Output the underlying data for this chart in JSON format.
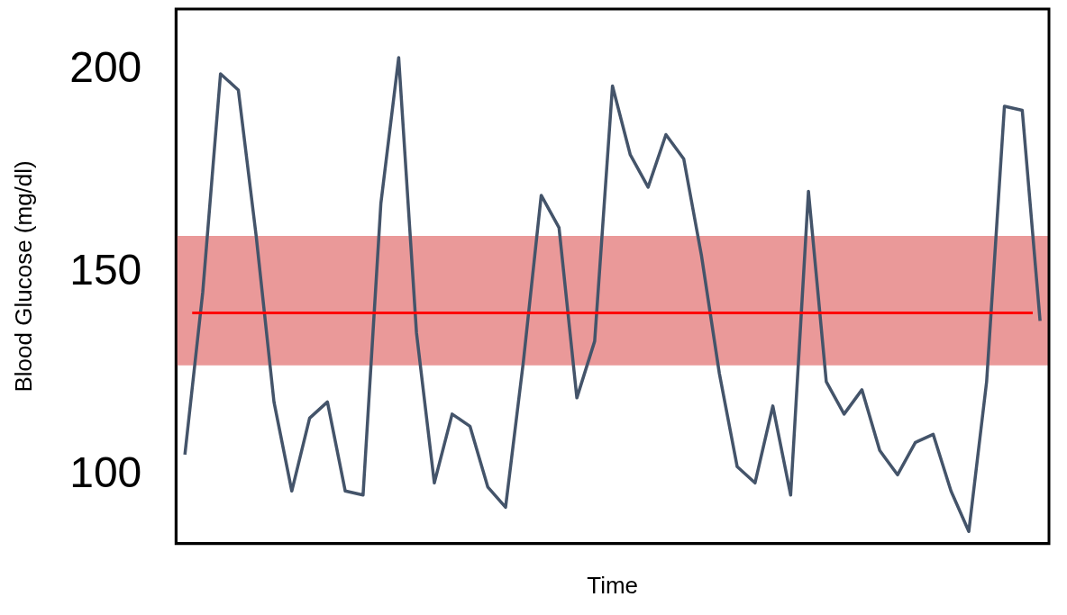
{
  "chart_data": {
    "type": "line",
    "xlabel": "Time",
    "ylabel": "Blood Glucose (mg/dl)",
    "categories": [
      null,
      null,
      null,
      null,
      null,
      null,
      null,
      null,
      null,
      null,
      null,
      null,
      null,
      null,
      null,
      null,
      null,
      null,
      null,
      null,
      null,
      null,
      null,
      null,
      null,
      null,
      null,
      null,
      null,
      null,
      null,
      null,
      null,
      null,
      null,
      null,
      null,
      null,
      null,
      null,
      null,
      null,
      null,
      null,
      null,
      null,
      null,
      null,
      null
    ],
    "series": [
      {
        "color": "#44546a",
        "values": [
          105,
          145,
          199,
          195,
          159,
          118,
          96,
          114,
          118,
          96,
          95,
          167,
          203,
          135,
          98,
          115,
          112,
          97,
          92,
          128,
          169,
          161,
          119,
          133,
          196,
          179,
          171,
          184,
          178,
          154,
          125,
          102,
          98,
          117,
          95,
          170,
          123,
          115,
          121,
          106,
          100,
          108,
          110,
          96,
          86,
          123,
          191,
          190,
          138
        ]
      }
    ],
    "ylim": [
      83,
      215
    ],
    "yticks": [
      100,
      150,
      200
    ],
    "tick_labels": "y",
    "bands": [
      {
        "axis": "y",
        "from": 127,
        "to": 159,
        "color": "#ea9999"
      }
    ],
    "ref_lines": [
      {
        "axis": "y",
        "value": 140,
        "color": "#ff0000"
      }
    ]
  }
}
